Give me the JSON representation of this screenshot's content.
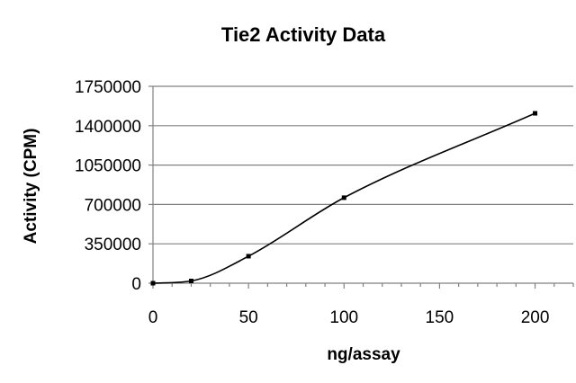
{
  "chart_data": {
    "type": "line",
    "title": "Tie2 Activity Data",
    "xlabel": "ng/assay",
    "ylabel": "Activity (CPM)",
    "x": [
      0,
      20,
      50,
      100,
      200
    ],
    "series": [
      {
        "values": [
          0,
          20000,
          240000,
          760000,
          1510000
        ],
        "color": "#000000"
      }
    ],
    "xlim": [
      0,
      220
    ],
    "ylim": [
      0,
      1750000
    ],
    "xticks": [
      0,
      50,
      100,
      150,
      200
    ],
    "xtick_labels": [
      "0",
      "50",
      "100",
      "150",
      "200"
    ],
    "yticks": [
      0,
      350000,
      700000,
      1050000,
      1400000,
      1750000
    ],
    "ytick_labels": [
      "0",
      "350000",
      "700000",
      "1050000",
      "1400000",
      "1750000"
    ],
    "grid": "horizontal",
    "legend": "none",
    "gridline_color": "#808080",
    "axis_color": "#808080",
    "line_style": "smoothed-with-markers"
  }
}
